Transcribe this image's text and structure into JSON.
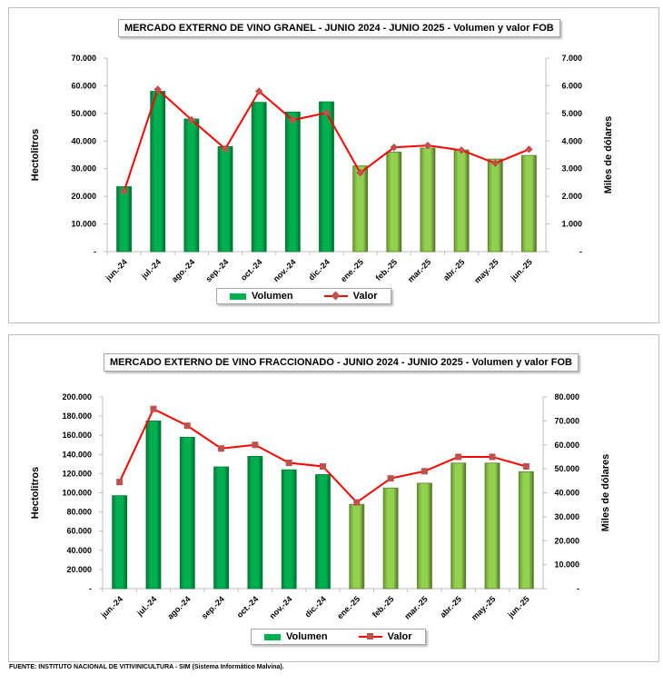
{
  "chart_data": [
    {
      "type": "bar+line",
      "title": "MERCADO EXTERNO DE VINO GRANEL - JUNIO 2024 - JUNIO 2025 - Volumen y valor FOB",
      "categories": [
        "jun.-24",
        "jul.-24",
        "ago.-24",
        "sep.-24",
        "oct.-24",
        "nov.-24",
        "dic.-24",
        "ene.-25",
        "feb.-25",
        "mar.-25",
        "abr.-25",
        "may.-25",
        "jun.-25"
      ],
      "ylabel": "Hectolitros",
      "y2label": "Miles de dólares",
      "ylim": [
        0,
        70000
      ],
      "y2lim": [
        0,
        7000
      ],
      "yticks": [
        "-",
        "10.000",
        "20.000",
        "30.000",
        "40.000",
        "50.000",
        "60.000",
        "70.000"
      ],
      "y2ticks": [
        "-",
        "1.000",
        "2.000",
        "3.000",
        "4.000",
        "5.000",
        "6.000",
        "7.000"
      ],
      "legend": "bottom",
      "series": [
        {
          "name": "Volumen",
          "axis": "left",
          "kind": "bar",
          "values": [
            23500,
            58000,
            48000,
            38000,
            54000,
            50500,
            54200,
            31000,
            36000,
            37500,
            36800,
            33500,
            34800
          ]
        },
        {
          "name": "Valor",
          "axis": "right",
          "kind": "line",
          "marker": "diamond",
          "values": [
            2180,
            5870,
            4770,
            3720,
            5800,
            4760,
            5020,
            2850,
            3770,
            3840,
            3670,
            3200,
            3700
          ]
        }
      ]
    },
    {
      "type": "bar+line",
      "title": "MERCADO EXTERNO DE VINO FRACCIONADO - JUNIO 2024 - JUNIO 2025 - Volumen y valor FOB",
      "categories": [
        "jun.-24",
        "jul.-24",
        "ago.-24",
        "sep.-24",
        "oct.-24",
        "nov.-24",
        "dic.-24",
        "ene.-25",
        "feb.-25",
        "mar.-25",
        "abr.-25",
        "may.-25",
        "jun.-25"
      ],
      "ylabel": "Hectolitros",
      "y2label": "Miles de dólares",
      "ylim": [
        0,
        200000
      ],
      "y2lim": [
        0,
        80000
      ],
      "yticks": [
        "-",
        "20.000",
        "40.000",
        "60.000",
        "80.000",
        "100.000",
        "120.000",
        "140.000",
        "160.000",
        "180.000",
        "200.000"
      ],
      "y2ticks": [
        "-",
        "10.000",
        "20.000",
        "30.000",
        "40.000",
        "50.000",
        "60.000",
        "70.000",
        "80.000"
      ],
      "legend": "bottom",
      "series": [
        {
          "name": "Volumen",
          "axis": "left",
          "kind": "bar",
          "values": [
            97000,
            175000,
            158000,
            127000,
            138000,
            124000,
            119000,
            88000,
            105000,
            110000,
            131000,
            131000,
            122000
          ]
        },
        {
          "name": "Valor",
          "axis": "right",
          "kind": "line",
          "marker": "square",
          "values": [
            44500,
            75000,
            68000,
            58500,
            60000,
            52500,
            51000,
            36000,
            46000,
            49000,
            55000,
            55000,
            51000
          ]
        }
      ]
    }
  ],
  "colors": {
    "bar_2024": "#00b050",
    "bar_2025": "#92d050",
    "line": "#ff0000",
    "marker": "#c0504d"
  },
  "footer": "FUENTE: INSTITUTO NACIONAL DE VITIVINICULTURA - SIM (Sistema Informático Malvina)."
}
